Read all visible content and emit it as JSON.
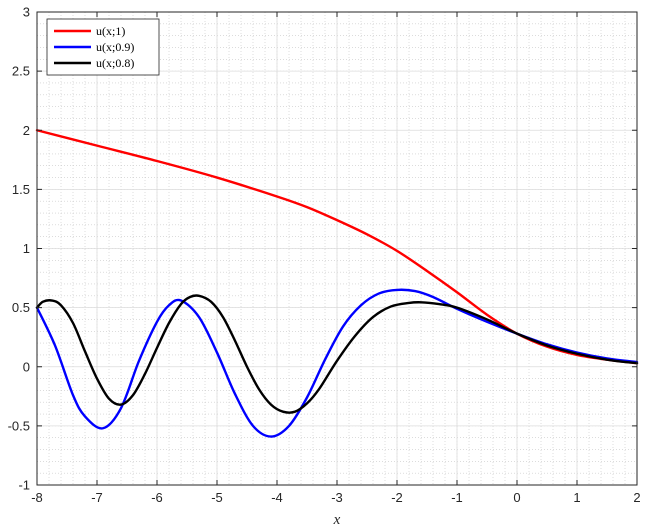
{
  "chart_data": {
    "type": "line",
    "title": "",
    "xlabel": "x",
    "ylabel": "",
    "xlim": [
      -8,
      2
    ],
    "ylim": [
      -1,
      3
    ],
    "grid": true,
    "minor_grid": true,
    "legend_position": "top-left",
    "x_ticks": [
      -8,
      -7,
      -6,
      -5,
      -4,
      -3,
      -2,
      -1,
      0,
      1,
      2
    ],
    "y_ticks": [
      -1,
      -0.5,
      0,
      0.5,
      1,
      1.5,
      2,
      2.5,
      3
    ],
    "series": [
      {
        "name": "u(x;1)",
        "color": "#ff0000",
        "x": [
          -8,
          -7,
          -6,
          -5,
          -4,
          -3.5,
          -3,
          -2.5,
          -2,
          -1.5,
          -1,
          -0.5,
          0,
          0.5,
          1,
          1.5,
          2
        ],
        "y": [
          2.0,
          1.87,
          1.74,
          1.6,
          1.44,
          1.35,
          1.24,
          1.12,
          0.98,
          0.81,
          0.63,
          0.44,
          0.28,
          0.17,
          0.1,
          0.06,
          0.03
        ]
      },
      {
        "name": "u(x;0.9)",
        "color": "#0000ff",
        "x": [
          -8,
          -7.7,
          -7.4,
          -7.2,
          -6.9,
          -6.6,
          -6.3,
          -6.0,
          -5.8,
          -5.6,
          -5.3,
          -5.0,
          -4.7,
          -4.4,
          -4.1,
          -3.8,
          -3.5,
          -3.2,
          -2.9,
          -2.6,
          -2.3,
          -2.0,
          -1.7,
          -1.4,
          -1.0,
          -0.5,
          0,
          0.5,
          1,
          1.5,
          2
        ],
        "y": [
          0.5,
          0.18,
          -0.24,
          -0.42,
          -0.52,
          -0.35,
          0.05,
          0.38,
          0.52,
          0.56,
          0.42,
          0.12,
          -0.23,
          -0.5,
          -0.59,
          -0.5,
          -0.26,
          0.06,
          0.34,
          0.52,
          0.62,
          0.65,
          0.64,
          0.59,
          0.49,
          0.38,
          0.28,
          0.19,
          0.12,
          0.07,
          0.04
        ]
      },
      {
        "name": "u(x;0.8)",
        "color": "#000000",
        "x": [
          -8,
          -7.9,
          -7.75,
          -7.6,
          -7.4,
          -7.2,
          -7.0,
          -6.8,
          -6.6,
          -6.4,
          -6.2,
          -6.0,
          -5.8,
          -5.6,
          -5.45,
          -5.3,
          -5.1,
          -4.9,
          -4.7,
          -4.5,
          -4.3,
          -4.1,
          -3.9,
          -3.7,
          -3.5,
          -3.3,
          -3.0,
          -2.7,
          -2.4,
          -2.1,
          -1.8,
          -1.6,
          -1.3,
          -1.0,
          -0.5,
          0,
          0.5,
          1,
          1.5,
          2
        ],
        "y": [
          0.5,
          0.55,
          0.56,
          0.52,
          0.37,
          0.13,
          -0.1,
          -0.27,
          -0.32,
          -0.24,
          -0.06,
          0.16,
          0.37,
          0.53,
          0.59,
          0.6,
          0.55,
          0.42,
          0.22,
          0.0,
          -0.19,
          -0.32,
          -0.38,
          -0.38,
          -0.31,
          -0.19,
          0.05,
          0.26,
          0.42,
          0.51,
          0.54,
          0.545,
          0.53,
          0.5,
          0.4,
          0.28,
          0.18,
          0.11,
          0.06,
          0.03
        ]
      }
    ]
  }
}
